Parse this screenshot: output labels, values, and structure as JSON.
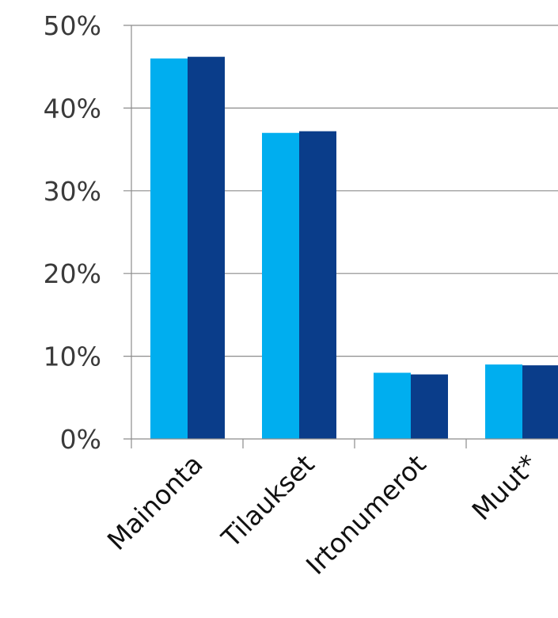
{
  "chart_data": {
    "type": "bar",
    "title": "",
    "xlabel": "",
    "ylabel": "",
    "categories": [
      "Mainonta",
      "Tilaukset",
      "Irtonumerot",
      "Muut*"
    ],
    "series": [
      {
        "values": [
          46,
          37,
          8,
          9
        ],
        "color": "#00aeef"
      },
      {
        "values": [
          46.2,
          37.2,
          7.8,
          8.9
        ],
        "color": "#0a3d8a"
      }
    ],
    "ylim": [
      0,
      50
    ],
    "yticks": [
      0,
      10,
      20,
      30,
      40,
      50
    ],
    "ytick_labels": [
      "0%",
      "10%",
      "20%",
      "30%",
      "40%",
      "50%"
    ],
    "grid": true,
    "gridline_color": "#8c8c8c",
    "axis_color": "#8c8c8c"
  }
}
